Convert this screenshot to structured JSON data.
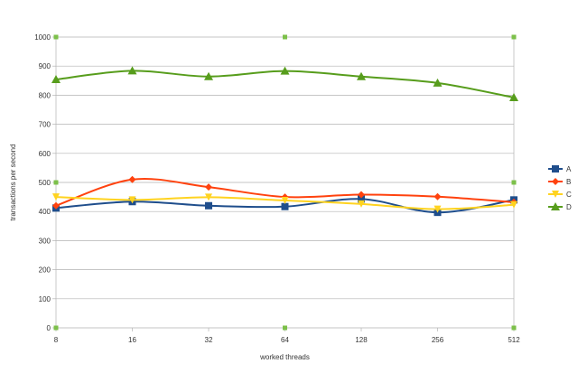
{
  "chart_data": {
    "type": "line",
    "smooth": true,
    "title": "",
    "xlabel": "worked threads",
    "ylabel": "transactions per second",
    "categories": [
      "8",
      "16",
      "32",
      "64",
      "128",
      "256",
      "512"
    ],
    "ylim": [
      0,
      1000
    ],
    "yticks": [
      0,
      100,
      200,
      300,
      400,
      500,
      600,
      700,
      800,
      900,
      1000
    ],
    "grid": "horizontal",
    "legend_position": "right",
    "corner_markers": {
      "color": "#7cc04a",
      "points": [
        {
          "x": "8",
          "y": 1000
        },
        {
          "x": "64",
          "y": 1000
        },
        {
          "x": "512",
          "y": 1000
        },
        {
          "x": "8",
          "y": 500
        },
        {
          "x": "512",
          "y": 500
        },
        {
          "x": "8",
          "y": 0
        },
        {
          "x": "64",
          "y": 0
        },
        {
          "x": "512",
          "y": 0
        }
      ]
    },
    "series": [
      {
        "name": "A",
        "color": "#1f4e8c",
        "marker": "square",
        "values": [
          412,
          434,
          420,
          417,
          443,
          397,
          440
        ]
      },
      {
        "name": "B",
        "color": "#ff420e",
        "marker": "diamond",
        "values": [
          420,
          510,
          484,
          450,
          458,
          451,
          432
        ]
      },
      {
        "name": "C",
        "color": "#ffd320",
        "marker": "triangle-down",
        "values": [
          450,
          440,
          449,
          438,
          426,
          408,
          423
        ]
      },
      {
        "name": "D",
        "color": "#579d1c",
        "marker": "triangle-up",
        "values": [
          854,
          884,
          864,
          883,
          864,
          842,
          792
        ]
      }
    ]
  }
}
